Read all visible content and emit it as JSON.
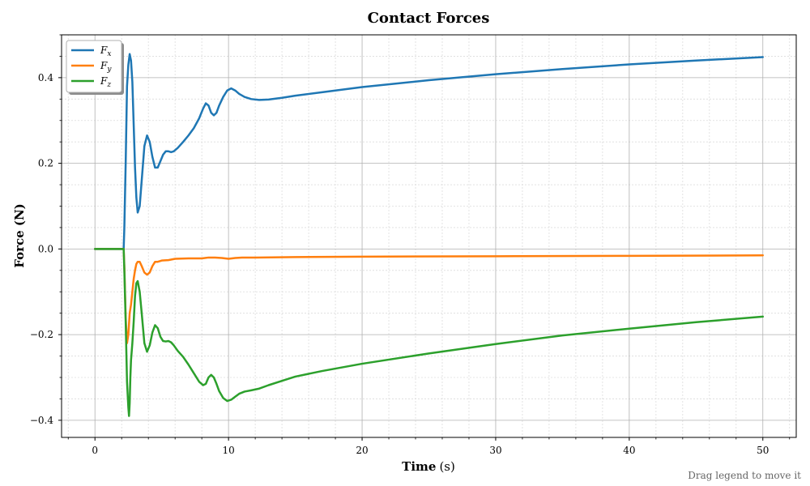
{
  "chart_data": {
    "type": "line",
    "title": "Contact Forces",
    "xlabel_bold": "Time",
    "xlabel_unit": "(s)",
    "ylabel": "Force (N)",
    "xlim": [
      -2.5,
      52.5
    ],
    "ylim": [
      -0.44,
      0.5
    ],
    "x_ticks": [
      0,
      10,
      20,
      30,
      40,
      50
    ],
    "x_tick_labels": [
      "0",
      "10",
      "20",
      "30",
      "40",
      "50"
    ],
    "y_ticks": [
      -0.4,
      -0.2,
      0.0,
      0.2,
      0.4
    ],
    "y_tick_labels": [
      "−0.4",
      "−0.2",
      "0.0",
      "0.2",
      "0.4"
    ],
    "grid": true,
    "minor_grid": true,
    "legend_placement": "upper-left",
    "series": [
      {
        "name": "F",
        "subscript": "x",
        "color": "#1f77b4",
        "x": [
          0,
          2.0,
          2.15,
          2.2,
          2.3,
          2.4,
          2.5,
          2.6,
          2.7,
          2.8,
          2.9,
          3.0,
          3.1,
          3.2,
          3.35,
          3.5,
          3.7,
          3.9,
          4.1,
          4.3,
          4.5,
          4.7,
          4.9,
          5.1,
          5.3,
          5.5,
          5.7,
          5.9,
          6.2,
          6.6,
          7.0,
          7.4,
          7.8,
          8.1,
          8.3,
          8.5,
          8.7,
          8.9,
          9.1,
          9.3,
          9.6,
          9.9,
          10.2,
          10.5,
          10.8,
          11.2,
          11.7,
          12.3,
          13.0,
          14.0,
          15.0,
          17.0,
          20.0,
          25.0,
          30.0,
          35.0,
          40.0,
          45.0,
          50.0
        ],
        "y": [
          0.0,
          0.0,
          0.0,
          0.05,
          0.2,
          0.38,
          0.43,
          0.455,
          0.44,
          0.39,
          0.29,
          0.19,
          0.12,
          0.085,
          0.1,
          0.16,
          0.24,
          0.265,
          0.25,
          0.215,
          0.19,
          0.19,
          0.205,
          0.22,
          0.228,
          0.228,
          0.226,
          0.228,
          0.236,
          0.25,
          0.265,
          0.282,
          0.305,
          0.328,
          0.34,
          0.335,
          0.318,
          0.312,
          0.318,
          0.335,
          0.355,
          0.37,
          0.375,
          0.37,
          0.362,
          0.355,
          0.35,
          0.348,
          0.349,
          0.353,
          0.358,
          0.366,
          0.378,
          0.394,
          0.408,
          0.42,
          0.431,
          0.44,
          0.448
        ]
      },
      {
        "name": "F",
        "subscript": "y",
        "color": "#ff7f0e",
        "x": [
          0,
          2.0,
          2.15,
          2.2,
          2.3,
          2.4,
          2.5,
          2.6,
          2.7,
          2.8,
          2.9,
          3.0,
          3.1,
          3.2,
          3.35,
          3.5,
          3.7,
          3.9,
          4.1,
          4.3,
          4.5,
          4.7,
          5.0,
          5.5,
          6.0,
          7.0,
          8.0,
          8.5,
          9.0,
          9.5,
          10.0,
          10.5,
          11.0,
          12.0,
          15.0,
          20.0,
          30.0,
          40.0,
          50.0
        ],
        "y": [
          0.0,
          0.0,
          0.0,
          -0.04,
          -0.16,
          -0.22,
          -0.2,
          -0.15,
          -0.13,
          -0.1,
          -0.07,
          -0.05,
          -0.035,
          -0.03,
          -0.03,
          -0.04,
          -0.055,
          -0.06,
          -0.055,
          -0.04,
          -0.03,
          -0.03,
          -0.027,
          -0.026,
          -0.023,
          -0.022,
          -0.022,
          -0.02,
          -0.02,
          -0.021,
          -0.023,
          -0.021,
          -0.02,
          -0.02,
          -0.019,
          -0.018,
          -0.017,
          -0.016,
          -0.015
        ]
      },
      {
        "name": "F",
        "subscript": "z",
        "color": "#2ca02c",
        "x": [
          0,
          2.0,
          2.15,
          2.2,
          2.3,
          2.4,
          2.5,
          2.55,
          2.6,
          2.65,
          2.7,
          2.75,
          2.8,
          2.9,
          3.0,
          3.1,
          3.2,
          3.35,
          3.5,
          3.7,
          3.9,
          4.1,
          4.3,
          4.5,
          4.7,
          4.9,
          5.1,
          5.3,
          5.5,
          5.7,
          5.9,
          6.2,
          6.6,
          7.0,
          7.4,
          7.8,
          8.1,
          8.3,
          8.5,
          8.7,
          8.9,
          9.1,
          9.3,
          9.6,
          9.9,
          10.2,
          10.5,
          10.8,
          11.2,
          11.7,
          12.3,
          13.0,
          14.0,
          15.0,
          17.0,
          20.0,
          25.0,
          30.0,
          35.0,
          40.0,
          45.0,
          50.0
        ],
        "y": [
          0.0,
          0.0,
          0.0,
          -0.05,
          -0.17,
          -0.31,
          -0.37,
          -0.39,
          -0.36,
          -0.3,
          -0.26,
          -0.24,
          -0.22,
          -0.17,
          -0.11,
          -0.08,
          -0.075,
          -0.1,
          -0.15,
          -0.22,
          -0.24,
          -0.225,
          -0.195,
          -0.178,
          -0.185,
          -0.205,
          -0.215,
          -0.216,
          -0.215,
          -0.218,
          -0.225,
          -0.238,
          -0.252,
          -0.27,
          -0.29,
          -0.31,
          -0.318,
          -0.315,
          -0.3,
          -0.294,
          -0.3,
          -0.315,
          -0.332,
          -0.348,
          -0.355,
          -0.352,
          -0.345,
          -0.338,
          -0.333,
          -0.33,
          -0.326,
          -0.318,
          -0.308,
          -0.298,
          -0.285,
          -0.268,
          -0.244,
          -0.222,
          -0.202,
          -0.186,
          -0.171,
          -0.158
        ]
      }
    ]
  },
  "hint": "Drag legend to move it"
}
